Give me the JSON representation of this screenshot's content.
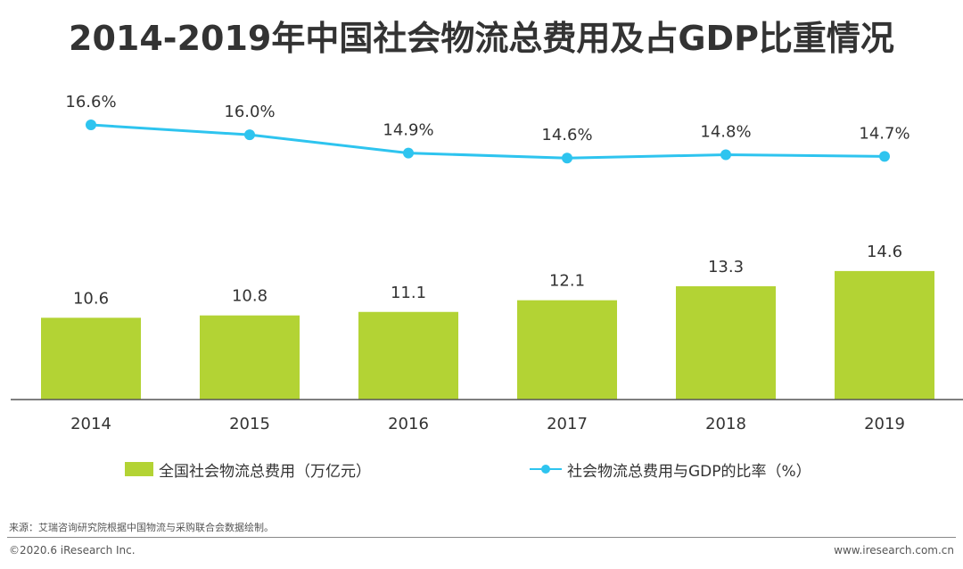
{
  "colors": {
    "bar": "#b3d334",
    "line": "#2ec4ef",
    "axis": "#555555",
    "text": "#333333"
  },
  "chart_data": {
    "type": "bar+line",
    "title": "2014-2019年中国社会物流总费用及占GDP比重情况",
    "categories": [
      "2014",
      "2015",
      "2016",
      "2017",
      "2018",
      "2019"
    ],
    "series": [
      {
        "name": "全国社会物流总费用（万亿元）",
        "type": "bar",
        "values": [
          10.6,
          10.8,
          11.1,
          12.1,
          13.3,
          14.6
        ],
        "labels": [
          "10.6",
          "10.8",
          "11.1",
          "12.1",
          "13.3",
          "14.6"
        ]
      },
      {
        "name": "社会物流总费用与GDP的比率（%）",
        "type": "line",
        "values": [
          16.6,
          16.0,
          14.9,
          14.6,
          14.8,
          14.7
        ],
        "labels": [
          "16.6%",
          "16.0%",
          "14.9%",
          "14.6%",
          "14.8%",
          "14.7%"
        ]
      }
    ],
    "legend": "bottom"
  },
  "footer": {
    "source": "来源：艾瑞咨询研究院根据中国物流与采购联合会数据绘制。",
    "copyright": "©2020.6 iResearch Inc.",
    "website": "www.iresearch.com.cn"
  }
}
